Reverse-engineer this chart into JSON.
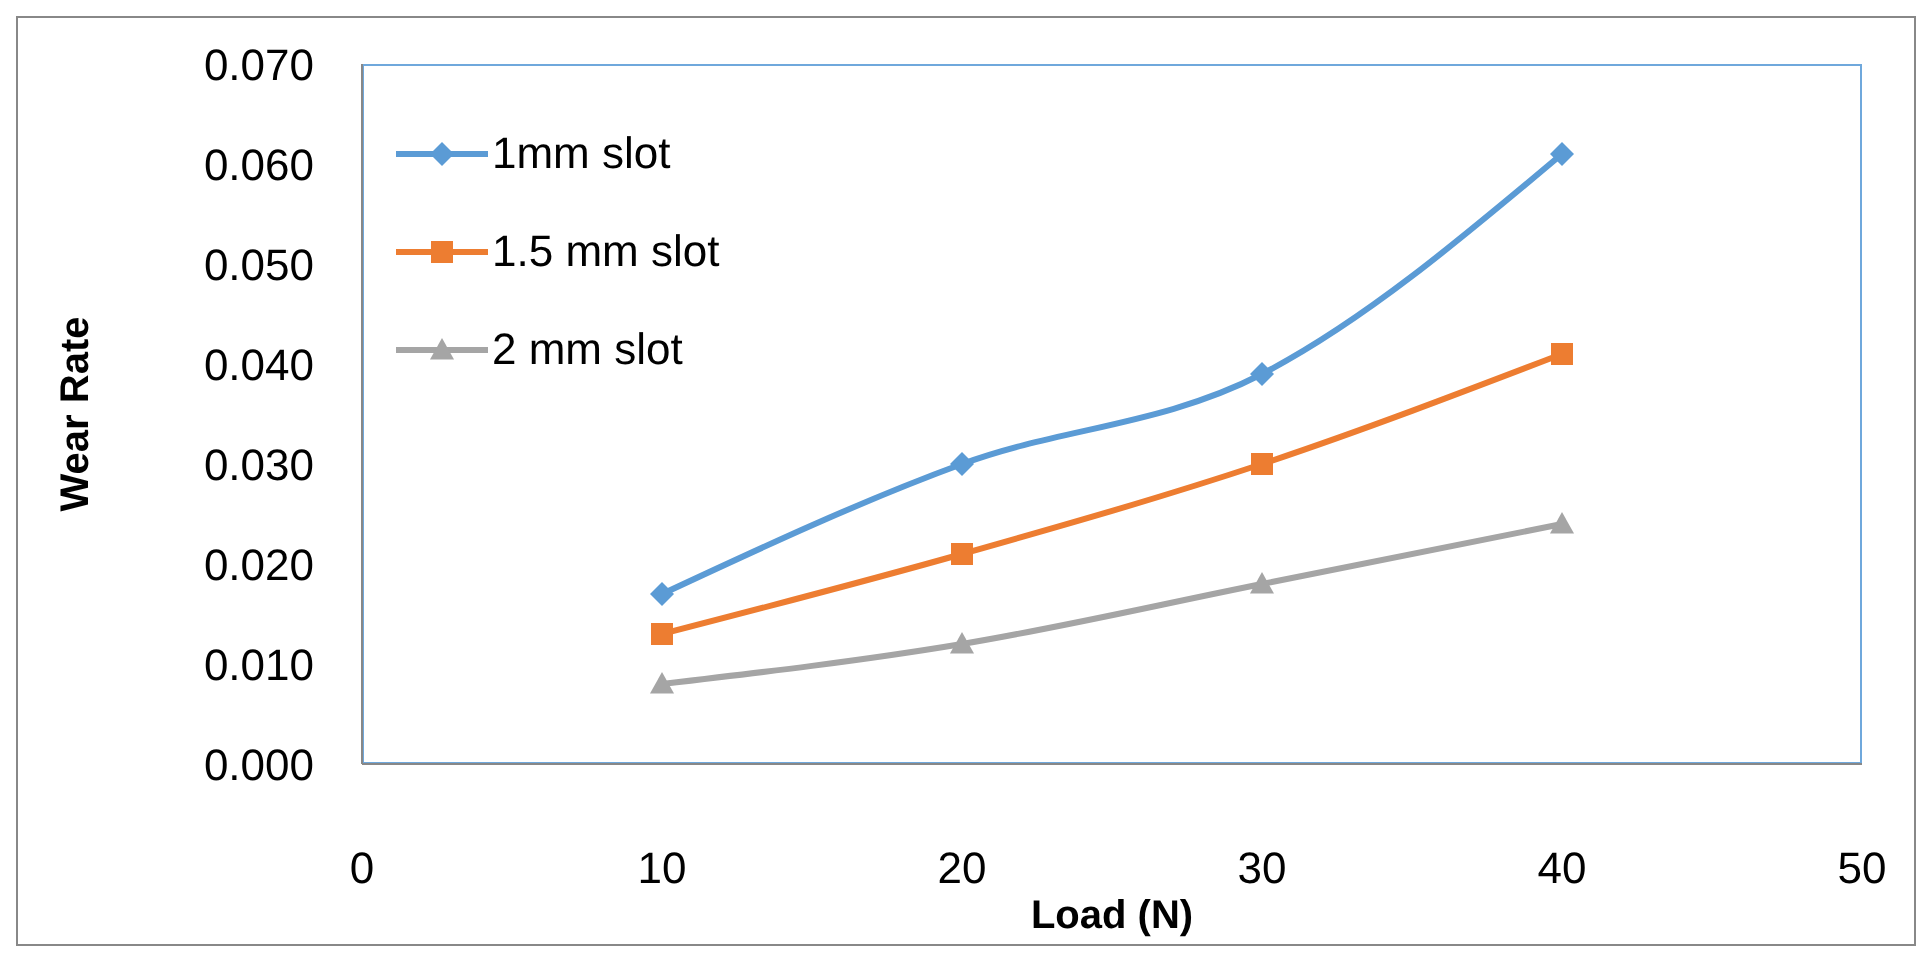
{
  "chart_data": {
    "type": "line",
    "xlabel": "Load (N)",
    "ylabel": "Wear Rate",
    "x": [
      10,
      20,
      30,
      40
    ],
    "xlim": [
      0,
      50
    ],
    "xticks": [
      0,
      10,
      20,
      30,
      40,
      50
    ],
    "ylim": [
      0,
      0.07
    ],
    "yticks": [
      {
        "value": 0,
        "label": "0.000"
      },
      {
        "value": 0.01,
        "label": "0.010"
      },
      {
        "value": 0.02,
        "label": "0.020"
      },
      {
        "value": 0.03,
        "label": "0.030"
      },
      {
        "value": 0.04,
        "label": "0.040"
      },
      {
        "value": 0.05,
        "label": "0.050"
      },
      {
        "value": 0.06,
        "label": "0.060"
      },
      {
        "value": 0.07,
        "label": "0.070"
      }
    ],
    "legend": "top left",
    "series": [
      {
        "name": "1mm slot",
        "color": "#5b9bd5",
        "marker": "diamond",
        "values": [
          0.017,
          0.03,
          0.039,
          0.061
        ]
      },
      {
        "name": "1.5 mm slot",
        "color": "#ed7d31",
        "marker": "square",
        "values": [
          0.013,
          0.021,
          0.03,
          0.041
        ]
      },
      {
        "name": "2 mm slot",
        "color": "#a5a5a5",
        "marker": "triangle",
        "values": [
          0.008,
          0.012,
          0.018,
          0.024
        ]
      }
    ]
  }
}
